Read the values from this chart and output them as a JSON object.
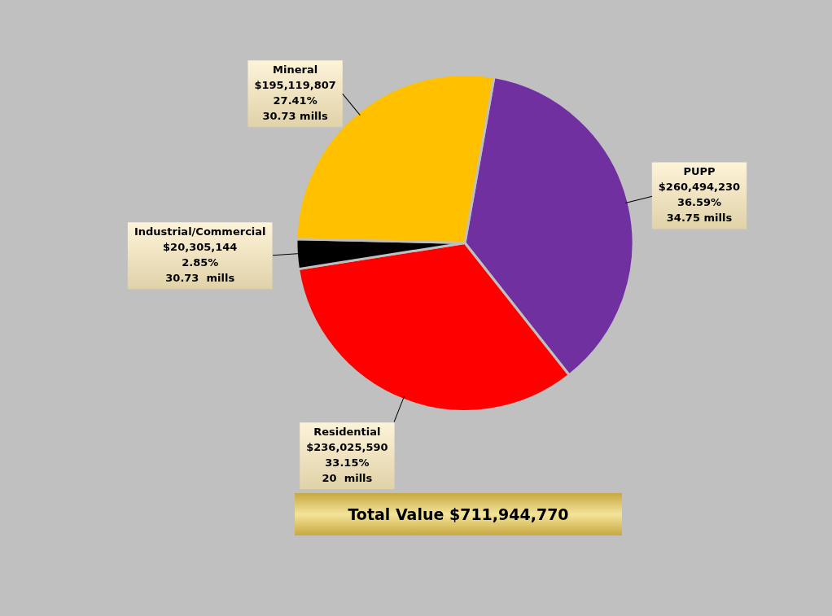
{
  "chart_data": {
    "type": "pie",
    "categories": [
      "PUPP",
      "Residential",
      "Industrial/Commercial",
      "Mineral"
    ],
    "values": [
      260494230,
      236025590,
      20305144,
      195119807
    ],
    "colors": [
      "#7030a0",
      "#ff0000",
      "#000000",
      "#ffc000"
    ],
    "value_labels": [
      "$260,494,230\n36.59%\n34.75 mills",
      "$236,025,590\n33.15%\n20  mills",
      "$20,305,144\n2.85%\n30.73  mills",
      "$195,119,807\n27.41%\n30.73 mills"
    ],
    "annotations": [
      "Total Value $711,944,770"
    ],
    "legend": false
  }
}
